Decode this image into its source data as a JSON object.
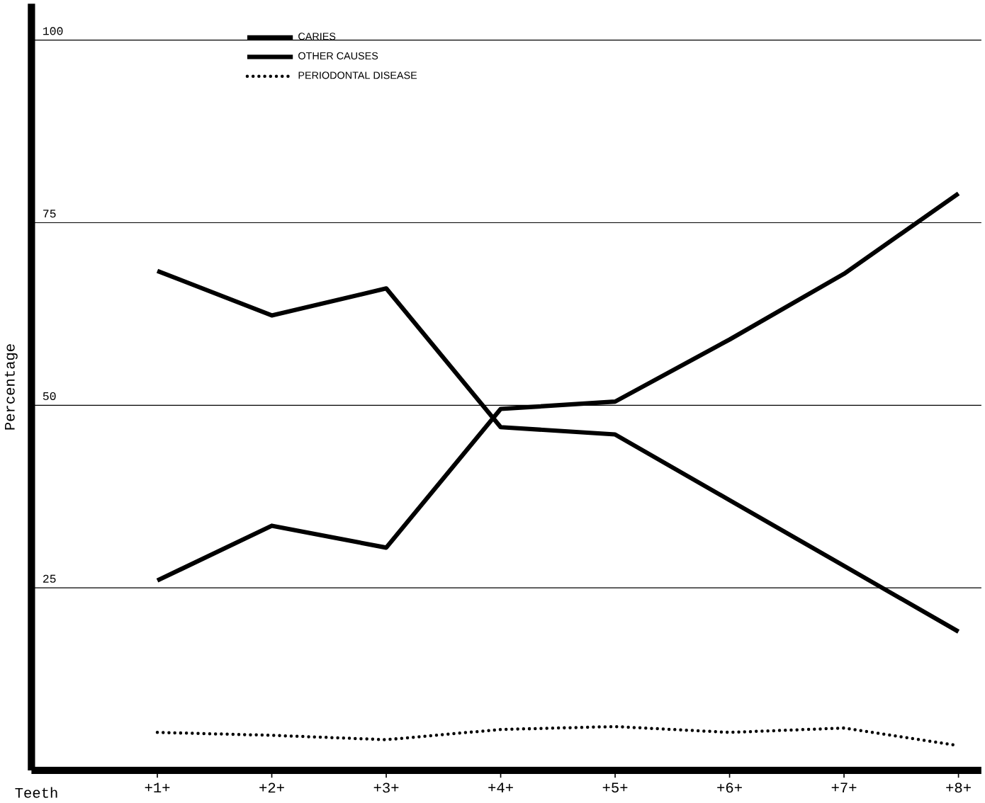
{
  "chart_data": {
    "type": "line",
    "xlabel": "Teeth",
    "ylabel": "Percentage",
    "categories": [
      "+1+",
      "+2+",
      "+3+",
      "+4+",
      "+5+",
      "+6+",
      "+7+",
      "+8+"
    ],
    "series": [
      {
        "name": "CARIES",
        "color": "#000000",
        "line_style": "solid",
        "values": [
          26,
          33.5,
          30.5,
          49.5,
          50.5,
          59,
          68,
          79
        ]
      },
      {
        "name": "OTHER CAUSES",
        "color": "#000000",
        "line_style": "solid",
        "values": [
          68.4,
          62.3,
          66,
          47,
          46,
          37,
          28,
          19
        ]
      },
      {
        "name": "PERIODONTAL DISEASE",
        "color": "#000000",
        "line_style": "dotted",
        "values": [
          5.2,
          4.8,
          4.2,
          5.6,
          6,
          5.2,
          5.8,
          3.4
        ]
      }
    ],
    "ylim": [
      0,
      105
    ],
    "yticks": [
      25,
      50,
      75,
      100
    ],
    "grid": "y",
    "legend": "top left",
    "marker": "none"
  }
}
